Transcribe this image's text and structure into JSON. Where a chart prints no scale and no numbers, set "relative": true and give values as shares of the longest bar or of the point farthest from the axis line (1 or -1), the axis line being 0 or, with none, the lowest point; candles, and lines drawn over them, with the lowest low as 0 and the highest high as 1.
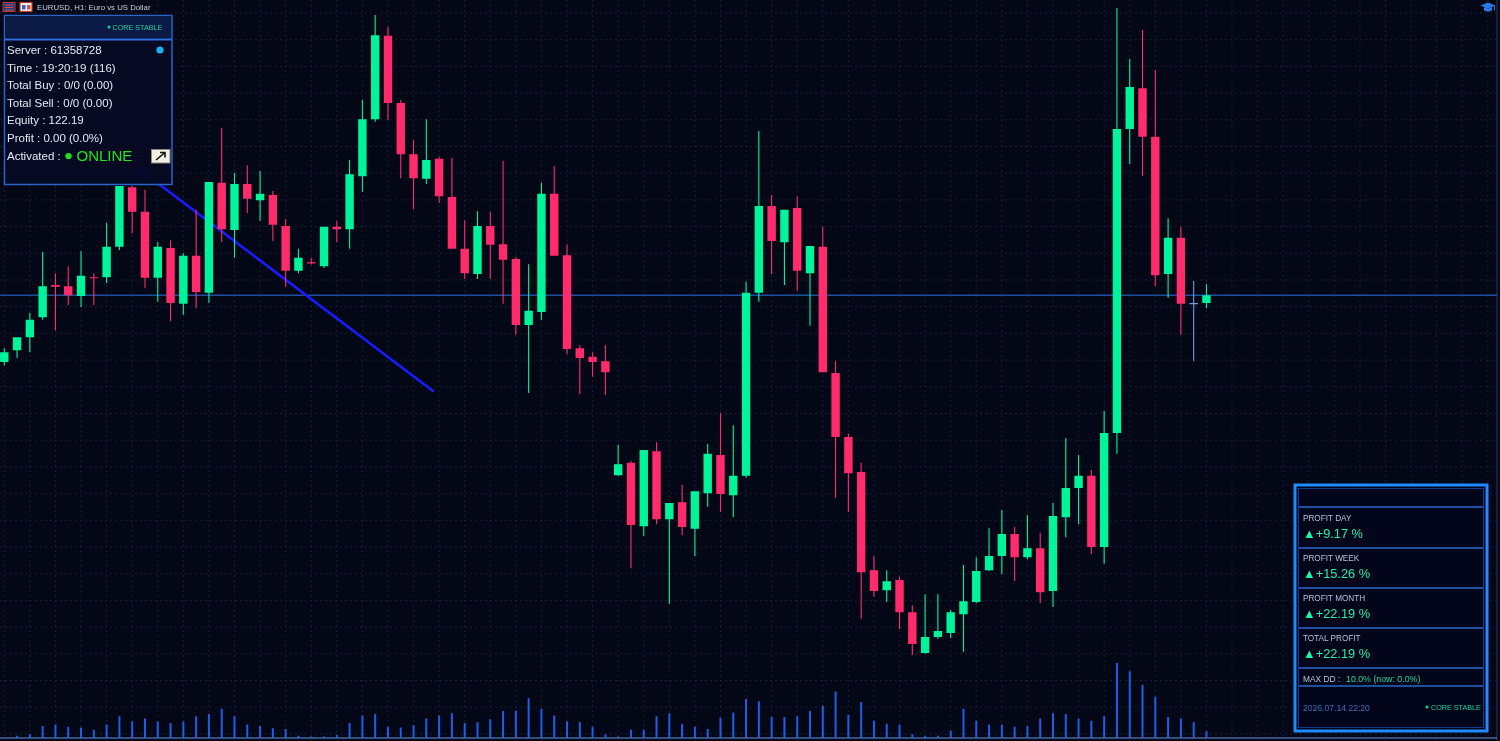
{
  "chart_data": [
    {
      "type": "candlestick",
      "title": "EURUSD, H1: Euro vs US Dollar",
      "relative": true,
      "grid": true,
      "categories": [
        null,
        null,
        null,
        null,
        null,
        null,
        null,
        null,
        null,
        null,
        null,
        null,
        null,
        null,
        null,
        null,
        null,
        null,
        null,
        null,
        null,
        null,
        null,
        null,
        null,
        null,
        null,
        null,
        null,
        null,
        null,
        null,
        null,
        null,
        null,
        null,
        null,
        null,
        null,
        null,
        null,
        null,
        null,
        null,
        null,
        null,
        null,
        null,
        null,
        null,
        null,
        null,
        null,
        null,
        null,
        null,
        null,
        null,
        null,
        null,
        null,
        null,
        null,
        null,
        null,
        null,
        null,
        null,
        null,
        null,
        null,
        null,
        null,
        null,
        null,
        null,
        null,
        null,
        null,
        null,
        null,
        null,
        null,
        null,
        null,
        null,
        null,
        null,
        null,
        null,
        null,
        null,
        null,
        null,
        null
      ],
      "ohlc": [
        [
          0.453,
          0.474,
          0.448,
          0.468
        ],
        [
          0.471,
          0.491,
          0.459,
          0.491
        ],
        [
          0.491,
          0.529,
          0.468,
          0.518
        ],
        [
          0.522,
          0.623,
          0.518,
          0.57
        ],
        [
          0.572,
          0.59,
          0.502,
          0.569
        ],
        [
          0.57,
          0.601,
          0.541,
          0.556
        ],
        [
          0.555,
          0.624,
          0.538,
          0.586
        ],
        [
          0.584,
          0.59,
          0.541,
          0.583
        ],
        [
          0.584,
          0.668,
          0.575,
          0.631
        ],
        [
          0.631,
          0.725,
          0.626,
          0.725
        ],
        [
          0.723,
          0.725,
          0.652,
          0.685
        ],
        [
          0.685,
          0.719,
          0.567,
          0.583
        ],
        [
          0.583,
          0.638,
          0.546,
          0.631
        ],
        [
          0.629,
          0.641,
          0.516,
          0.544
        ],
        [
          0.543,
          0.621,
          0.526,
          0.617
        ],
        [
          0.617,
          0.688,
          0.536,
          0.561
        ],
        [
          0.56,
          0.731,
          0.544,
          0.731
        ],
        [
          0.73,
          0.815,
          0.638,
          0.658
        ],
        [
          0.657,
          0.745,
          0.614,
          0.728
        ],
        [
          0.728,
          0.757,
          0.683,
          0.705
        ],
        [
          0.703,
          0.748,
          0.671,
          0.713
        ],
        [
          0.711,
          0.717,
          0.64,
          0.665
        ],
        [
          0.663,
          0.674,
          0.569,
          0.594
        ],
        [
          0.594,
          0.628,
          0.59,
          0.614
        ],
        [
          0.607,
          0.614,
          0.603,
          0.606
        ],
        [
          0.601,
          0.662,
          0.598,
          0.662
        ],
        [
          0.662,
          0.671,
          0.638,
          0.658
        ],
        [
          0.658,
          0.765,
          0.628,
          0.743
        ],
        [
          0.74,
          0.858,
          0.716,
          0.828
        ],
        [
          0.828,
          0.989,
          0.824,
          0.958
        ],
        [
          0.957,
          0.971,
          0.827,
          0.853
        ],
        [
          0.853,
          0.858,
          0.737,
          0.774
        ],
        [
          0.774,
          0.796,
          0.689,
          0.737
        ],
        [
          0.736,
          0.828,
          0.728,
          0.765
        ],
        [
          0.767,
          0.77,
          0.699,
          0.709
        ],
        [
          0.708,
          0.768,
          0.628,
          0.628
        ],
        [
          0.628,
          0.672,
          0.581,
          0.59
        ],
        [
          0.589,
          0.686,
          0.581,
          0.663
        ],
        [
          0.663,
          0.685,
          0.581,
          0.634
        ],
        [
          0.635,
          0.764,
          0.543,
          0.611
        ],
        [
          0.612,
          0.615,
          0.495,
          0.51
        ],
        [
          0.51,
          0.604,
          0.405,
          0.532
        ],
        [
          0.53,
          0.73,
          0.518,
          0.713
        ],
        [
          0.713,
          0.756,
          0.617,
          0.617
        ],
        [
          0.618,
          0.635,
          0.465,
          0.473
        ],
        [
          0.474,
          0.479,
          0.403,
          0.459
        ],
        [
          0.461,
          0.468,
          0.43,
          0.453
        ],
        [
          0.454,
          0.479,
          0.402,
          0.437
        ],
        [
          0.278,
          0.325,
          0.277,
          0.295
        ],
        [
          0.297,
          0.3,
          0.134,
          0.201
        ],
        [
          0.199,
          0.317,
          0.184,
          0.317
        ],
        [
          0.315,
          0.329,
          0.202,
          0.21
        ],
        [
          0.21,
          0.235,
          0.079,
          0.235
        ],
        [
          0.236,
          0.263,
          0.185,
          0.198
        ],
        [
          0.195,
          0.253,
          0.153,
          0.253
        ],
        [
          0.25,
          0.326,
          0.229,
          0.311
        ],
        [
          0.309,
          0.374,
          0.221,
          0.249
        ],
        [
          0.247,
          0.355,
          0.213,
          0.277
        ],
        [
          0.277,
          0.577,
          0.274,
          0.56
        ],
        [
          0.56,
          0.81,
          0.546,
          0.694
        ],
        [
          0.694,
          0.711,
          0.589,
          0.64
        ],
        [
          0.638,
          0.688,
          0.572,
          0.688
        ],
        [
          0.691,
          0.709,
          0.563,
          0.594
        ],
        [
          0.59,
          0.632,
          0.509,
          0.632
        ],
        [
          0.631,
          0.662,
          0.437,
          0.437
        ],
        [
          0.436,
          0.454,
          0.243,
          0.337
        ],
        [
          0.337,
          0.342,
          0.221,
          0.281
        ],
        [
          0.283,
          0.297,
          0.056,
          0.128
        ],
        [
          0.131,
          0.153,
          0.09,
          0.099
        ],
        [
          0.1,
          0.131,
          0.082,
          0.114
        ],
        [
          0.116,
          0.121,
          0.04,
          0.066
        ],
        [
          0.066,
          0.077,
          0,
          0.017
        ],
        [
          0.003,
          0.094,
          0.002,
          0.028
        ],
        [
          0.028,
          0.094,
          0.025,
          0.037
        ],
        [
          0.034,
          0.07,
          0.026,
          0.066
        ],
        [
          0.063,
          0.139,
          0.005,
          0.083
        ],
        [
          0.082,
          0.151,
          0.08,
          0.13
        ],
        [
          0.131,
          0.196,
          0.13,
          0.153
        ],
        [
          0.153,
          0.224,
          0.125,
          0.187
        ],
        [
          0.187,
          0.198,
          0.114,
          0.151
        ],
        [
          0.151,
          0.216,
          0.148,
          0.165
        ],
        [
          0.165,
          0.189,
          0.08,
          0.097
        ],
        [
          0.099,
          0.235,
          0.074,
          0.215
        ],
        [
          0.213,
          0.335,
          0.182,
          0.258
        ],
        [
          0.258,
          0.309,
          0.202,
          0.277
        ],
        [
          0.277,
          0.286,
          0.156,
          0.167
        ],
        [
          0.167,
          0.377,
          0.141,
          0.343
        ],
        [
          0.343,
          1,
          0.311,
          0.813
        ],
        [
          0.813,
          0.921,
          0.759,
          0.878
        ],
        [
          0.876,
          0.966,
          0.74,
          0.801
        ],
        [
          0.801,
          0.904,
          0.57,
          0.587
        ],
        [
          0.589,
          0.675,
          0.552,
          0.645
        ],
        [
          0.645,
          0.662,
          0.495,
          0.543
        ],
        [
          0.544,
          0.578,
          0.454,
          0.544
        ],
        [
          0.544,
          0.573,
          0.536,
          0.556
        ]
      ],
      "colors": [
        "#00f59b",
        "#00f59b",
        "#00f59b",
        "#00f59b",
        "#ff2b6b",
        "#ff2b6b",
        "#00f59b",
        "#ff2b6b",
        "#00f59b",
        "#00f59b",
        "#ff2b6b",
        "#ff2b6b",
        "#00f59b",
        "#ff2b6b",
        "#00f59b",
        "#ff2b6b",
        "#00f59b",
        "#ff2b6b",
        "#00f59b",
        "#ff2b6b",
        "#00f59b",
        "#ff2b6b",
        "#ff2b6b",
        "#00f59b",
        "#ff2b6b",
        "#00f59b",
        "#ff2b6b",
        "#00f59b",
        "#00f59b",
        "#00f59b",
        "#ff2b6b",
        "#ff2b6b",
        "#ff2b6b",
        "#00f59b",
        "#ff2b6b",
        "#ff2b6b",
        "#ff2b6b",
        "#00f59b",
        "#ff2b6b",
        "#ff2b6b",
        "#ff2b6b",
        "#00f59b",
        "#00f59b",
        "#ff2b6b",
        "#ff2b6b",
        "#ff2b6b",
        "#ff2b6b",
        "#ff2b6b",
        "#00f59b",
        "#ff2b6b",
        "#00f59b",
        "#ff2b6b",
        "#00f59b",
        "#ff2b6b",
        "#00f59b",
        "#00f59b",
        "#ff2b6b",
        "#00f59b",
        "#00f59b",
        "#00f59b",
        "#ff2b6b",
        "#00f59b",
        "#ff2b6b",
        "#00f59b",
        "#ff2b6b",
        "#ff2b6b",
        "#ff2b6b",
        "#ff2b6b",
        "#ff2b6b",
        "#00f59b",
        "#ff2b6b",
        "#ff2b6b",
        "#00f59b",
        "#00f59b",
        "#00f59b",
        "#00f59b",
        "#00f59b",
        "#00f59b",
        "#00f59b",
        "#ff2b6b",
        "#00f59b",
        "#ff2b6b",
        "#00f59b",
        "#00f59b",
        "#00f59b",
        "#ff2b6b",
        "#00f59b",
        "#00f59b",
        "#00f59b",
        "#ff2b6b",
        "#ff2b6b",
        "#00f59b",
        "#ff2b6b",
        "#6b9fe0",
        "#00f59b"
      ],
      "ref_lines": [
        {
          "axis": "y",
          "value": 0.556,
          "color": "#1d4f9c"
        }
      ]
    },
    {
      "type": "bar",
      "relative": true,
      "color": "#1f5fe6",
      "categories": [
        null,
        null,
        null,
        null,
        null,
        null,
        null,
        null,
        null,
        null,
        null,
        null,
        null,
        null,
        null,
        null,
        null,
        null,
        null,
        null,
        null,
        null,
        null,
        null,
        null,
        null,
        null,
        null,
        null,
        null,
        null,
        null,
        null,
        null,
        null,
        null,
        null,
        null,
        null,
        null,
        null,
        null,
        null,
        null,
        null,
        null,
        null,
        null,
        null,
        null,
        null,
        null,
        null,
        null,
        null,
        null,
        null,
        null,
        null,
        null,
        null,
        null,
        null,
        null,
        null,
        null,
        null,
        null,
        null,
        null,
        null,
        null,
        null,
        null,
        null,
        null,
        null,
        null,
        null,
        null,
        null,
        null,
        null,
        null,
        null,
        null,
        null,
        null,
        null,
        null,
        null,
        null,
        null,
        null,
        null
      ],
      "values": [
        null,
        0.03,
        0.05,
        0.16,
        0.18,
        0.15,
        0.14,
        0.11,
        0.18,
        0.29,
        0.22,
        0.26,
        0.22,
        0.2,
        0.22,
        0.29,
        0.32,
        0.39,
        0.29,
        0.18,
        0.16,
        0.13,
        0.12,
        0.03,
        0.02,
        0.02,
        0.04,
        0.2,
        0.3,
        0.32,
        0.15,
        0.14,
        0.17,
        0.26,
        0.3,
        0.33,
        0.2,
        0.21,
        0.25,
        0.36,
        0.36,
        0.53,
        0.39,
        0.3,
        0.22,
        0.21,
        0.15,
        0.05,
        0.02,
        0.11,
        0.11,
        0.29,
        0.33,
        0.19,
        0.15,
        0.12,
        0.27,
        0.34,
        0.52,
        0.49,
        0.28,
        0.28,
        0.29,
        0.36,
        0.43,
        0.62,
        0.31,
        0.48,
        0.23,
        0.19,
        0.18,
        0.05,
        0.03,
        0.03,
        0.1,
        0.39,
        0.23,
        0.18,
        0.18,
        0.15,
        0.16,
        0.26,
        0.33,
        0.32,
        0.26,
        0.23,
        0.29,
        1,
        0.89,
        0.71,
        0.55,
        0.28,
        0.26,
        0.21,
        0.09
      ]
    },
    {
      "type": "other",
      "annotations": [
        "CORE STABLE",
        "Server : 61358728",
        "Time : 19:20:19 (116)",
        "Total Buy : 0/0 (0.00)",
        "Total Sell : 0/0 (0.00)",
        "Equity : 122.19",
        "Profit : 0.00 (0.0%)",
        "Activated :",
        "ONLINE"
      ]
    },
    {
      "type": "other",
      "annotations": [
        "PROFIT DAY",
        "▲+9.17 %",
        "PROFIT WEEK",
        "▲+15.26 %",
        "PROFIT MONTH",
        "▲+22.19 %",
        "TOTAL PROFIT",
        "▲+22.19 %",
        "MAX DD :",
        "10.0% (now: 0.0%)",
        "2026.07.14 22:20",
        "CORE STABLE"
      ]
    }
  ]
}
